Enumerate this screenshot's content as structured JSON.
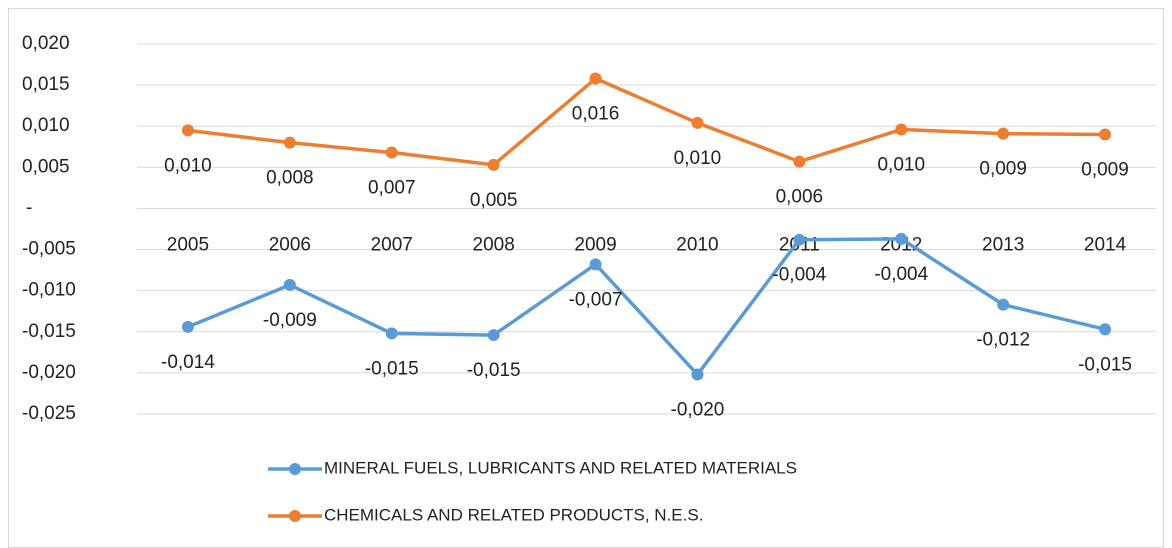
{
  "chart_data": {
    "type": "line",
    "categories": [
      "2005",
      "2006",
      "2007",
      "2008",
      "2009",
      "2010",
      "2011",
      "2012",
      "2013",
      "2014"
    ],
    "series": [
      {
        "name": "MINERAL FUELS, LUBRICANTS AND RELATED MATERIALS",
        "color": "#5b9bd5",
        "values": [
          -0.0144,
          -0.0093,
          -0.0152,
          -0.0154,
          -0.0068,
          -0.0202,
          -0.0038,
          -0.0037,
          -0.0117,
          -0.0147
        ],
        "value_labels": [
          "-0,014",
          "-0,009",
          "-0,015",
          "-0,015",
          "-0,007",
          "-0,020",
          "-0,004",
          "-0,004",
          "-0,012",
          "-0,015"
        ]
      },
      {
        "name": "CHEMICALS AND RELATED PRODUCTS, N.E.S.",
        "color": "#ed7d31",
        "values": [
          0.0095,
          0.008,
          0.0068,
          0.0053,
          0.0158,
          0.0104,
          0.0057,
          0.0096,
          0.0091,
          0.009
        ],
        "value_labels": [
          "0,010",
          "0,008",
          "0,007",
          "0,005",
          "0,016",
          "0,010",
          "0,006",
          "0,010",
          "0,009",
          "0,009"
        ]
      }
    ],
    "ylim": [
      -0.025,
      0.02
    ],
    "yticks": [
      {
        "value": -0.025,
        "label": "-0,025"
      },
      {
        "value": -0.02,
        "label": "-0,020"
      },
      {
        "value": -0.015,
        "label": "-0,015"
      },
      {
        "value": -0.01,
        "label": "-0,010"
      },
      {
        "value": -0.005,
        "label": "-0,005"
      },
      {
        "value": 0,
        "label": "-"
      },
      {
        "value": 0.005,
        "label": "0,005"
      },
      {
        "value": 0.01,
        "label": "0,010"
      },
      {
        "value": 0.015,
        "label": "0,015"
      },
      {
        "value": 0.02,
        "label": "0,020"
      }
    ],
    "grid": true,
    "legend": "bottom"
  }
}
